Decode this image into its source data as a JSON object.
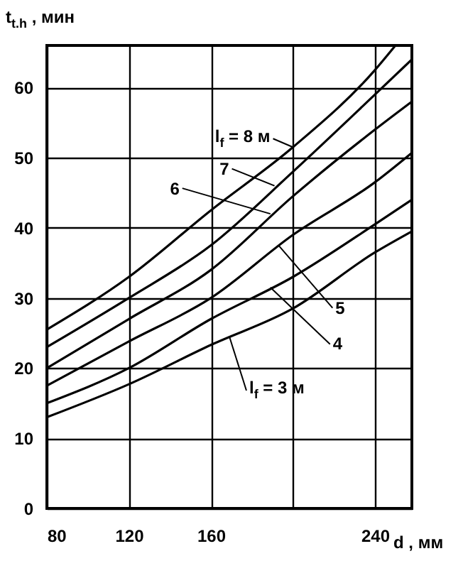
{
  "chart_data": {
    "type": "line",
    "xlabel": "d , мм",
    "ylabel": "t$_{t.h}$ , мин",
    "x": [
      80,
      120,
      160,
      200,
      240,
      258
    ],
    "series": [
      {
        "color": "#000000",
        "values": [
          13,
          17.7,
          23.3,
          28.5,
          36.5,
          39.5
        ]
      },
      {
        "color": "#000000",
        "values": [
          15,
          20,
          27,
          33,
          40.5,
          44
        ]
      },
      {
        "color": "#000000",
        "values": [
          17.5,
          23.8,
          30,
          39,
          46.5,
          50.7
        ]
      },
      {
        "color": "#000000",
        "values": [
          20,
          27,
          34,
          44.5,
          54,
          58
        ]
      },
      {
        "color": "#000000",
        "values": [
          23,
          30,
          37.5,
          48,
          59,
          64
        ]
      },
      {
        "color": "#000000",
        "x": [
          80,
          120,
          160,
          200,
          240,
          250
        ],
        "values": [
          25.5,
          33,
          42.5,
          51.5,
          62.5,
          66
        ]
      }
    ],
    "xlim": [
      80,
      258
    ],
    "ylim": [
      0,
      66
    ],
    "xticks": [
      80,
      120,
      160,
      {
        "value": 200,
        "label": null
      },
      240
    ],
    "yticks": [
      0,
      10,
      20,
      30,
      40,
      50,
      60
    ],
    "grid": true,
    "line_style": "solid",
    "marker": "none",
    "annotations": [
      {
        "text": "l$_{f}$ = 8 м",
        "x": 200,
        "y": 51.5
      },
      {
        "text": "7",
        "x": 191,
        "y": 46
      },
      {
        "text": "6",
        "x": 189,
        "y": 42
      },
      {
        "text": "5",
        "x": 193,
        "y": 37.5
      },
      {
        "text": "4",
        "x": 189,
        "y": 31.5
      },
      {
        "text": "l$_{f}$ = 3 м",
        "x": 169,
        "y": 24.5
      }
    ]
  }
}
